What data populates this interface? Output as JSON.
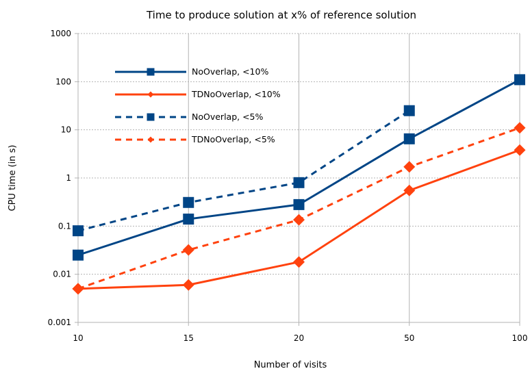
{
  "chart_data": {
    "type": "line",
    "title": "Time to produce solution at x% of reference solution",
    "xlabel": "Number of visits",
    "ylabel": "CPU time (in s)",
    "categories": [
      "10",
      "15",
      "20",
      "50",
      "100"
    ],
    "y_scale": "log",
    "ylim": [
      0.001,
      1000
    ],
    "y_ticks": [
      "0.001",
      "0.01",
      "0.1",
      "1",
      "10",
      "100",
      "1000"
    ],
    "grid": "horizontal dotted",
    "legend_position": "top-left",
    "series": [
      {
        "name": "NoOverlap, <10%",
        "values": [
          0.025,
          0.14,
          0.28,
          6.5,
          110
        ],
        "color": "#004586",
        "line": "solid",
        "marker": "square"
      },
      {
        "name": "TDNoOverlap, <10%",
        "values": [
          0.005,
          0.006,
          0.018,
          0.55,
          3.8
        ],
        "color": "#ff420e",
        "line": "solid",
        "marker": "diamond"
      },
      {
        "name": "NoOverlap, <5%",
        "values": [
          0.08,
          0.31,
          0.8,
          25,
          null
        ],
        "color": "#004586",
        "line": "dashed",
        "marker": "square"
      },
      {
        "name": "TDNoOverlap, <5%",
        "values": [
          0.005,
          0.032,
          0.135,
          1.7,
          11
        ],
        "color": "#ff420e",
        "line": "dashed",
        "marker": "diamond"
      }
    ]
  }
}
